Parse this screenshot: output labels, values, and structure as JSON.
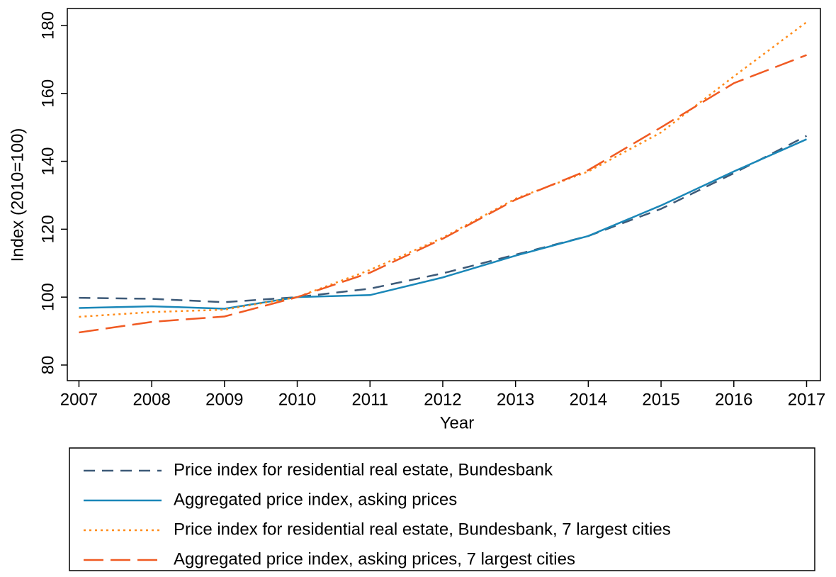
{
  "chart_data": {
    "type": "line",
    "x_label": "Year",
    "y_label": "Index (2010=100)",
    "x": [
      2007,
      2008,
      2009,
      2010,
      2011,
      2012,
      2013,
      2014,
      2015,
      2016,
      2017
    ],
    "xlim": [
      2006.84,
      2017.19
    ],
    "xticks": [
      2007,
      2008,
      2009,
      2010,
      2011,
      2012,
      2013,
      2014,
      2015,
      2016,
      2017
    ],
    "ylim": [
      75.4,
      185
    ],
    "yticks": [
      80,
      100,
      120,
      140,
      160,
      180
    ],
    "series": [
      {
        "name": "Price index for residential real estate, Bundesbank",
        "color": "#3d5a78",
        "dash": "16 10",
        "values": [
          99.8,
          99.5,
          98.5,
          100,
          102.5,
          107,
          112.5,
          118,
          126,
          136.5,
          147.5
        ]
      },
      {
        "name": "Aggregated price index, asking prices",
        "color": "#1a87b8",
        "dash": "none",
        "values": [
          96.8,
          97.3,
          96.6,
          100,
          100.6,
          105.8,
          112.2,
          118,
          127,
          137,
          146.5
        ]
      },
      {
        "name": "Price index for residential real estate, Bundesbank, 7 largest cities",
        "color": "#ff8c1a",
        "dash": "3 5",
        "values": [
          94.2,
          95.6,
          96.3,
          100,
          108,
          117.5,
          129,
          137,
          148.5,
          165,
          181
        ]
      },
      {
        "name": "Aggregated price index, asking prices, 7 largest cities",
        "color": "#f05a22",
        "dash": "28 10",
        "values": [
          89.6,
          92.7,
          94.3,
          100,
          107.2,
          117.2,
          128.7,
          137.4,
          150,
          163,
          171.3
        ]
      }
    ]
  }
}
